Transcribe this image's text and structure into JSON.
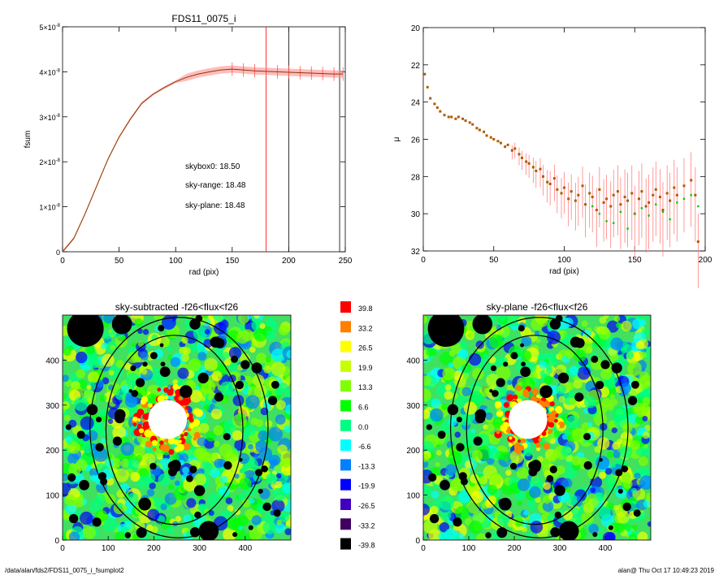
{
  "footer": {
    "path": "/data/alan/fds2/FDS11_0075_i_fsumplot2",
    "user_time": "alan@  Thu Oct 17 10:49:23 2019"
  },
  "chart_data": [
    {
      "type": "line",
      "title": "FDS11_0075_i",
      "xlabel": "rad (pix)",
      "ylabel": "fsum",
      "xlim": [
        0,
        250
      ],
      "ylim": [
        0,
        5e-08
      ],
      "x_ticks": [
        "0",
        "50",
        "100",
        "150",
        "200",
        "250"
      ],
      "y_ticks": [
        {
          "mant": "0",
          "exp": ""
        },
        {
          "mant": "1×10",
          "exp": "-8"
        },
        {
          "mant": "2×10",
          "exp": "-8"
        },
        {
          "mant": "3×10",
          "exp": "-8"
        },
        {
          "mant": "4×10",
          "exp": "-8"
        },
        {
          "mant": "5×10",
          "exp": "-8"
        }
      ],
      "series": [
        {
          "color": "#ff0000",
          "x": [
            0,
            10,
            20,
            30,
            40,
            50,
            60,
            70,
            80,
            90,
            100,
            110,
            120,
            130,
            140,
            150,
            160,
            170,
            180,
            190,
            200,
            210,
            220,
            230,
            240,
            248
          ],
          "y": [
            0,
            3e-09,
            8.5e-09,
            1.45e-08,
            2.05e-08,
            2.55e-08,
            2.95e-08,
            3.3e-08,
            3.5e-08,
            3.65e-08,
            3.78e-08,
            3.88e-08,
            3.95e-08,
            4e-08,
            4.04e-08,
            4.06e-08,
            4.04e-08,
            4.02e-08,
            4.01e-08,
            4e-08,
            3.99e-08,
            3.98e-08,
            3.97e-08,
            3.96e-08,
            3.95e-08,
            3.95e-08
          ]
        }
      ],
      "vlines": [
        {
          "x": 180,
          "color": "#ff0000"
        },
        {
          "x": 200,
          "color": "#000000"
        },
        {
          "x": 245,
          "color": "#000000"
        }
      ],
      "annotations": [
        {
          "text": "skybox0: 18.50",
          "color": "#000000"
        },
        {
          "text": "sky-range: 18.48",
          "color": "#ff0000"
        },
        {
          "text": "sky-plane: 18.48",
          "color": "#00d000"
        }
      ]
    },
    {
      "type": "scatter",
      "title": "",
      "xlabel": "rad (pix)",
      "ylabel": "μ",
      "xlim": [
        0,
        200
      ],
      "ylim": [
        32,
        20
      ],
      "x_ticks": [
        "0",
        "50",
        "100",
        "150",
        "200"
      ],
      "y_ticks": [
        "20",
        "22",
        "24",
        "26",
        "28",
        "30",
        "32"
      ],
      "series": [
        {
          "color": "#cc3300",
          "x": [
            1,
            3,
            5,
            8,
            10,
            12,
            15,
            18,
            20,
            23,
            25,
            28,
            30,
            33,
            35,
            38,
            40,
            43,
            45,
            48,
            50,
            53,
            55,
            58,
            60,
            63,
            65,
            68,
            70,
            73,
            75,
            78,
            80,
            83,
            85,
            88,
            90,
            93,
            95,
            98,
            100,
            103,
            105,
            108,
            110,
            113,
            115,
            118,
            120,
            123,
            125,
            128,
            130,
            133,
            135,
            138,
            140,
            143,
            145,
            148,
            150,
            153,
            155,
            158,
            160,
            163,
            165,
            168,
            170,
            173,
            175,
            178,
            180,
            185,
            190,
            193,
            195
          ],
          "y": [
            22.5,
            23.2,
            23.8,
            24.1,
            24.3,
            24.5,
            24.7,
            24.8,
            24.8,
            24.9,
            24.8,
            24.9,
            25.0,
            25.1,
            25.2,
            25.4,
            25.5,
            25.6,
            25.8,
            25.9,
            26.0,
            26.1,
            26.2,
            26.4,
            26.3,
            26.6,
            26.5,
            26.8,
            27.0,
            27.2,
            27.3,
            27.5,
            27.7,
            27.6,
            28.0,
            28.3,
            28.4,
            28.1,
            28.7,
            28.9,
            28.6,
            29.2,
            28.8,
            29.3,
            29.0,
            28.5,
            29.5,
            28.9,
            29.1,
            29.8,
            28.7,
            29.4,
            29.2,
            29.6,
            29.0,
            28.8,
            29.5,
            29.1,
            29.3,
            28.9,
            30.0,
            29.2,
            28.8,
            29.6,
            29.4,
            29.0,
            28.7,
            29.1,
            29.8,
            28.9,
            29.3,
            28.6,
            29.0,
            28.5,
            28.2,
            29.0,
            31.5
          ]
        },
        {
          "color": "#00cc00",
          "x": [
            120,
            125,
            130,
            135,
            140,
            145,
            150,
            155,
            160,
            165,
            170,
            175,
            180,
            185,
            190,
            195
          ],
          "y": [
            29.6,
            30.0,
            30.4,
            30.5,
            29.9,
            30.8,
            30.0,
            29.7,
            30.1,
            29.5,
            29.9,
            30.3,
            29.4,
            29.2,
            29.0,
            29.6
          ]
        }
      ]
    },
    {
      "type": "heatmap",
      "title": "sky-subtracted -f26<flux<f26",
      "xlim": [
        0,
        500
      ],
      "ylim": [
        0,
        500
      ],
      "x_ticks": [
        "0",
        "100",
        "200",
        "300",
        "400"
      ],
      "y_ticks": [
        "0",
        "100",
        "200",
        "300",
        "400"
      ]
    },
    {
      "type": "heatmap",
      "title": "sky-plane -f26<flux<f26",
      "xlim": [
        0,
        500
      ],
      "ylim": [
        0,
        500
      ],
      "x_ticks": [
        "0",
        "100",
        "200",
        "300",
        "400"
      ],
      "y_ticks": [
        "0",
        "100",
        "200",
        "300",
        "400"
      ]
    }
  ],
  "colorbar": {
    "levels": [
      {
        "label": "39.8",
        "color": "#ff0000"
      },
      {
        "label": "33.2",
        "color": "#ff8000"
      },
      {
        "label": "26.5",
        "color": "#ffff00"
      },
      {
        "label": "19.9",
        "color": "#c8ff00"
      },
      {
        "label": "13.3",
        "color": "#80ff00"
      },
      {
        "label": "6.6",
        "color": "#00ff00"
      },
      {
        "label": "0.0",
        "color": "#00ff80"
      },
      {
        "label": "-6.6",
        "color": "#00ffff"
      },
      {
        "label": "-13.3",
        "color": "#0080ff"
      },
      {
        "label": "-19.9",
        "color": "#0000ff"
      },
      {
        "label": "-26.5",
        "color": "#4000c0"
      },
      {
        "label": "-33.2",
        "color": "#400060"
      },
      {
        "label": "-39.8",
        "color": "#000000"
      }
    ]
  }
}
